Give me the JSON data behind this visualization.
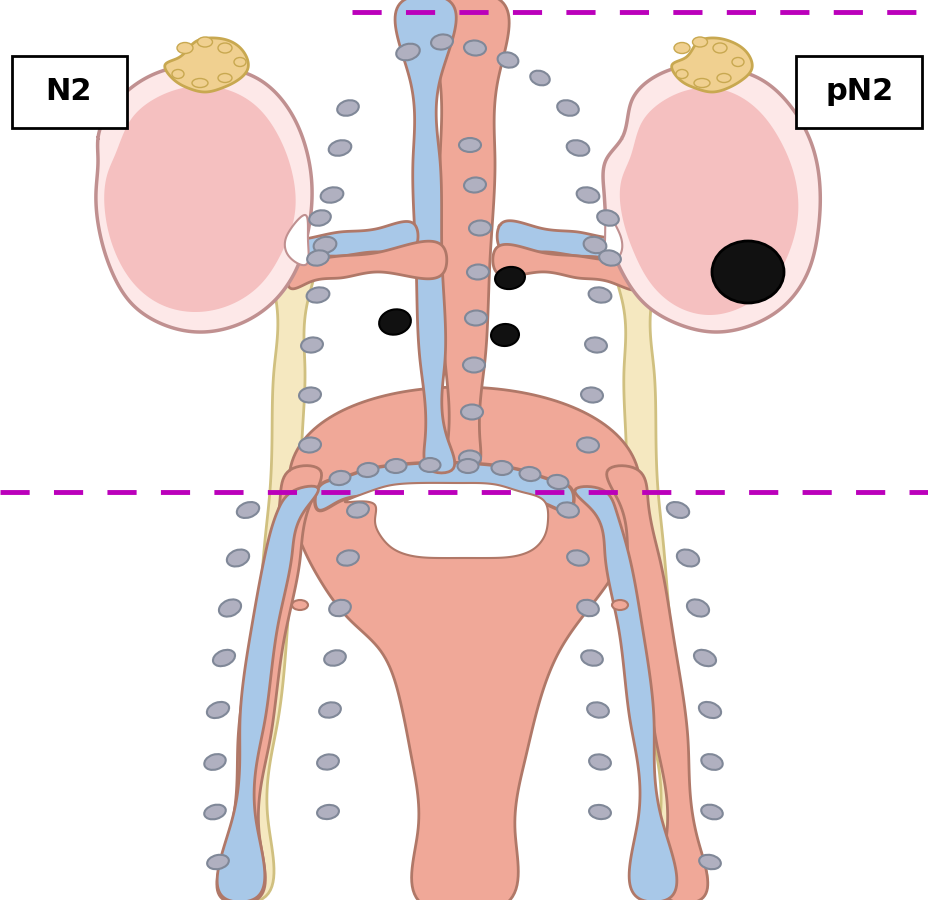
{
  "bg": "#ffffff",
  "dash_color": "#bb00bb",
  "kidney_fill": "#f5c0c0",
  "kidney_fill2": "#fde8e8",
  "kidney_edge": "#c09090",
  "adrenal_fill": "#f0d090",
  "adrenal_edge": "#c8a850",
  "vessel_blue": "#a8c8e8",
  "vessel_blue_dark": "#88a8d0",
  "vessel_salmon": "#f0a898",
  "vessel_salmon_light": "#f8c8c0",
  "vessel_edge": "#b07868",
  "bone_fill": "#f5e8c0",
  "bone_fill2": "#fff8e8",
  "bone_edge": "#d0c080",
  "ln_fill": "#b0b0c0",
  "ln_fill2": "#d0d0e0",
  "ln_edge": "#808898",
  "ln_black": "#111111",
  "label_left": "N2",
  "label_right": "pN2",
  "label_fs": 22
}
